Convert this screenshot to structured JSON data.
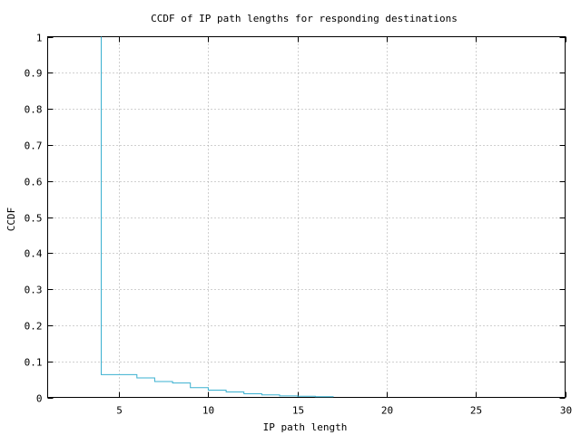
{
  "chart_data": {
    "type": "line",
    "title": "CCDF of IP path lengths for responding destinations",
    "xlabel": "IP path length",
    "ylabel": "CCDF",
    "xlim": [
      1,
      30
    ],
    "ylim": [
      0,
      1
    ],
    "x_ticks": [
      5,
      10,
      15,
      20,
      25,
      30
    ],
    "y_ticks": [
      0,
      0.1,
      0.2,
      0.3,
      0.4,
      0.5,
      0.6,
      0.7,
      0.8,
      0.9,
      1
    ],
    "grid": true,
    "step": true,
    "series_color": "#3ab0d0",
    "series": [
      {
        "x": [
          4,
          4,
          6,
          7,
          8,
          9,
          10,
          11,
          12,
          13,
          14,
          15,
          16,
          17
        ],
        "y": [
          1,
          0.063,
          0.054,
          0.044,
          0.04,
          0.027,
          0.02,
          0.015,
          0.01,
          0.007,
          0.004,
          0.003,
          0.002,
          0.001
        ]
      }
    ]
  }
}
